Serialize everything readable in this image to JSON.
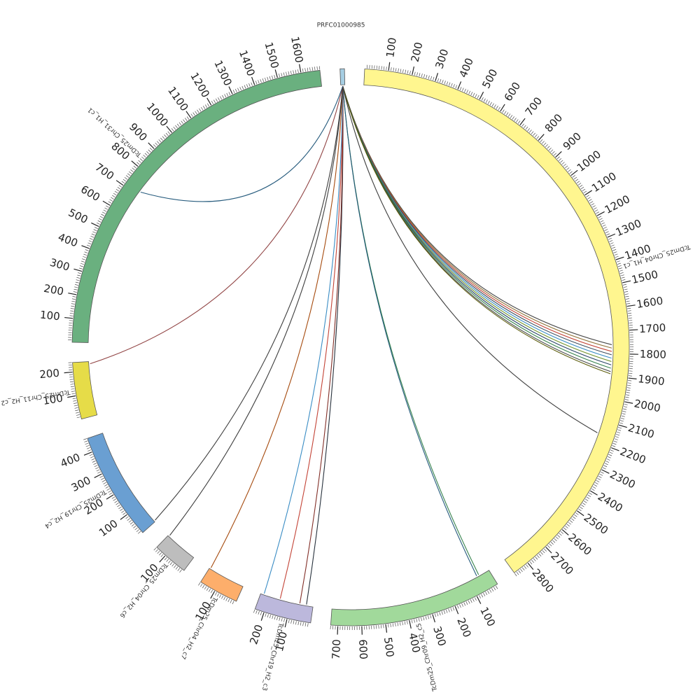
{
  "diagram": {
    "segments": [
      {
        "id": "PRFC01000985",
        "label": "PRFC01000985",
        "color": "#a6cee3",
        "length": 10,
        "label_every": 0
      },
      {
        "id": "TcDm25_Chr04_H1_c1",
        "label": "TcDm25_Chr04_H1_c1",
        "color": "#fff68f",
        "length": 2870,
        "label_every": 100
      },
      {
        "id": "TcDm25_Chr09_H2_c5",
        "label": "TcDm25_Chr09_H2_c5",
        "color": "#a1d99b",
        "length": 730,
        "label_every": 100
      },
      {
        "id": "TcDm25_Chr19_H2_c3",
        "label": "TcDm25_Chr19_H2_c3",
        "color": "#bcb8dc",
        "length": 240,
        "label_every": 100
      },
      {
        "id": "TcDm25_Chr04_H2_c7",
        "label": "TcDm25_Chr04_H2_c7",
        "color": "#fdae6b",
        "length": 170,
        "label_every": 100
      },
      {
        "id": "TcDm25_Chr04_H2_c6",
        "label": "TcDm25_Chr04_H2_c6",
        "color": "#bdbdbd",
        "length": 150,
        "label_every": 100
      },
      {
        "id": "TcDm25_Chr19_H2_c4",
        "label": "TcDm25_Chr19_H2_c4",
        "color": "#6a9fd2",
        "length": 460,
        "label_every": 100
      },
      {
        "id": "TcDm25_Chr11_H2_c2",
        "label": "TcDm25_Chr11_H2_c2",
        "color": "#e6dc48",
        "length": 240,
        "label_every": 100
      },
      {
        "id": "TcDm25_Chr31_H1_c1",
        "label": "TcDm25_Chr31_H1_c1",
        "color": "#6ab07f",
        "length": 1680,
        "label_every": 100
      }
    ],
    "links": [
      {
        "from": "PRFC01000985",
        "from_pos": 5,
        "to": "TcDm25_Chr04_H1_c1",
        "to_pos": 1760,
        "color": "#3b3b3b"
      },
      {
        "from": "PRFC01000985",
        "from_pos": 5,
        "to": "TcDm25_Chr04_H1_c1",
        "to_pos": 1775,
        "color": "#8b6d2f"
      },
      {
        "from": "PRFC01000985",
        "from_pos": 5,
        "to": "TcDm25_Chr04_H1_c1",
        "to_pos": 1790,
        "color": "#c0392b"
      },
      {
        "from": "PRFC01000985",
        "from_pos": 5,
        "to": "TcDm25_Chr04_H1_c1",
        "to_pos": 1805,
        "color": "#2c3e50"
      },
      {
        "from": "PRFC01000985",
        "from_pos": 5,
        "to": "TcDm25_Chr04_H1_c1",
        "to_pos": 1820,
        "color": "#2e86c1"
      },
      {
        "from": "PRFC01000985",
        "from_pos": 5,
        "to": "TcDm25_Chr04_H1_c1",
        "to_pos": 1835,
        "color": "#6b8e23"
      },
      {
        "from": "PRFC01000985",
        "from_pos": 5,
        "to": "TcDm25_Chr04_H1_c1",
        "to_pos": 1850,
        "color": "#1f3a5f"
      },
      {
        "from": "PRFC01000985",
        "from_pos": 5,
        "to": "TcDm25_Chr04_H1_c1",
        "to_pos": 1865,
        "color": "#2d7d46"
      },
      {
        "from": "PRFC01000985",
        "from_pos": 5,
        "to": "TcDm25_Chr04_H1_c1",
        "to_pos": 1880,
        "color": "#444444"
      },
      {
        "from": "PRFC01000985",
        "from_pos": 5,
        "to": "TcDm25_Chr04_H1_c1",
        "to_pos": 1890,
        "color": "#555500"
      },
      {
        "from": "PRFC01000985",
        "from_pos": 5,
        "to": "TcDm25_Chr04_H1_c1",
        "to_pos": 2160,
        "color": "#333333"
      },
      {
        "from": "PRFC01000985",
        "from_pos": 5,
        "to": "TcDm25_Chr09_H2_c5",
        "to_pos": 50,
        "color": "#2d7d46"
      },
      {
        "from": "PRFC01000985",
        "from_pos": 5,
        "to": "TcDm25_Chr09_H2_c5",
        "to_pos": 60,
        "color": "#1a5276"
      },
      {
        "from": "PRFC01000985",
        "from_pos": 5,
        "to": "TcDm25_Chr19_H2_c3",
        "to_pos": 30,
        "color": "#1b2631"
      },
      {
        "from": "PRFC01000985",
        "from_pos": 5,
        "to": "TcDm25_Chr19_H2_c3",
        "to_pos": 60,
        "color": "#7b241c"
      },
      {
        "from": "PRFC01000985",
        "from_pos": 5,
        "to": "TcDm25_Chr19_H2_c3",
        "to_pos": 150,
        "color": "#c0392b"
      },
      {
        "from": "PRFC01000985",
        "from_pos": 5,
        "to": "TcDm25_Chr19_H2_c3",
        "to_pos": 225,
        "color": "#2e86c1"
      },
      {
        "from": "PRFC01000985",
        "from_pos": 5,
        "to": "TcDm25_Chr04_H2_c7",
        "to_pos": 165,
        "color": "#a04000"
      },
      {
        "from": "PRFC01000985",
        "from_pos": 5,
        "to": "TcDm25_Chr04_H2_c6",
        "to_pos": 145,
        "color": "#333333"
      },
      {
        "from": "PRFC01000985",
        "from_pos": 5,
        "to": "TcDm25_Chr19_H2_c4",
        "to_pos": 5,
        "color": "#333333"
      },
      {
        "from": "PRFC01000985",
        "from_pos": 5,
        "to": "TcDm25_Chr11_H2_c2",
        "to_pos": 230,
        "color": "#8b3a3a"
      },
      {
        "from": "PRFC01000985",
        "from_pos": 5,
        "to": "TcDm25_Chr31_H1_c1",
        "to_pos": 720,
        "color": "#1a5276"
      }
    ]
  }
}
